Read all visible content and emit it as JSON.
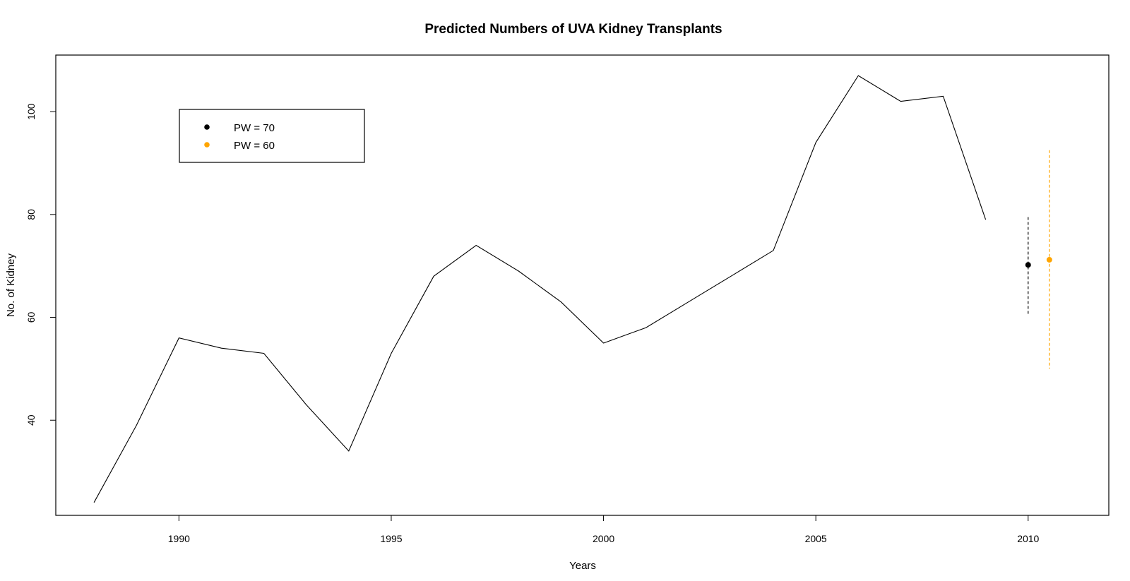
{
  "chart_data": {
    "type": "line",
    "title": "Predicted Numbers of UVA Kidney Transplants",
    "xlabel": "Years",
    "ylabel": "No. of Kidney",
    "xlim": [
      1987.1,
      2011.9
    ],
    "ylim": [
      21.5,
      111.0
    ],
    "x_ticks": [
      1990,
      1995,
      2000,
      2005,
      2010
    ],
    "y_ticks": [
      40,
      60,
      80,
      100
    ],
    "x_tick_labels": [
      "1990",
      "1995",
      "2000",
      "2005",
      "2010"
    ],
    "y_tick_labels": [
      "40",
      "60",
      "80",
      "100"
    ],
    "grid": false,
    "legend_position": "top-left",
    "series": [
      {
        "x": [
          1988,
          1989,
          1990,
          1991,
          1992,
          1993,
          1994,
          1995,
          1996,
          1997,
          1998,
          1999,
          2000,
          2001,
          2002,
          2003,
          2004,
          2005,
          2006,
          2007,
          2008,
          2009
        ],
        "values": [
          24,
          39,
          56,
          54,
          53,
          43,
          34,
          53,
          68,
          74,
          69,
          63,
          55,
          58,
          63,
          68,
          73,
          94,
          107,
          102,
          103,
          79
        ],
        "color": "#000000"
      }
    ],
    "predictions": [
      {
        "name": "PW = 70",
        "x": 2010.0,
        "y": 70.2,
        "lower": 60.5,
        "upper": 79.5,
        "color": "#000000"
      },
      {
        "name": "PW = 60",
        "x": 2010.5,
        "y": 71.2,
        "lower": 50.0,
        "upper": 92.5,
        "color": "#FFA500"
      }
    ]
  }
}
